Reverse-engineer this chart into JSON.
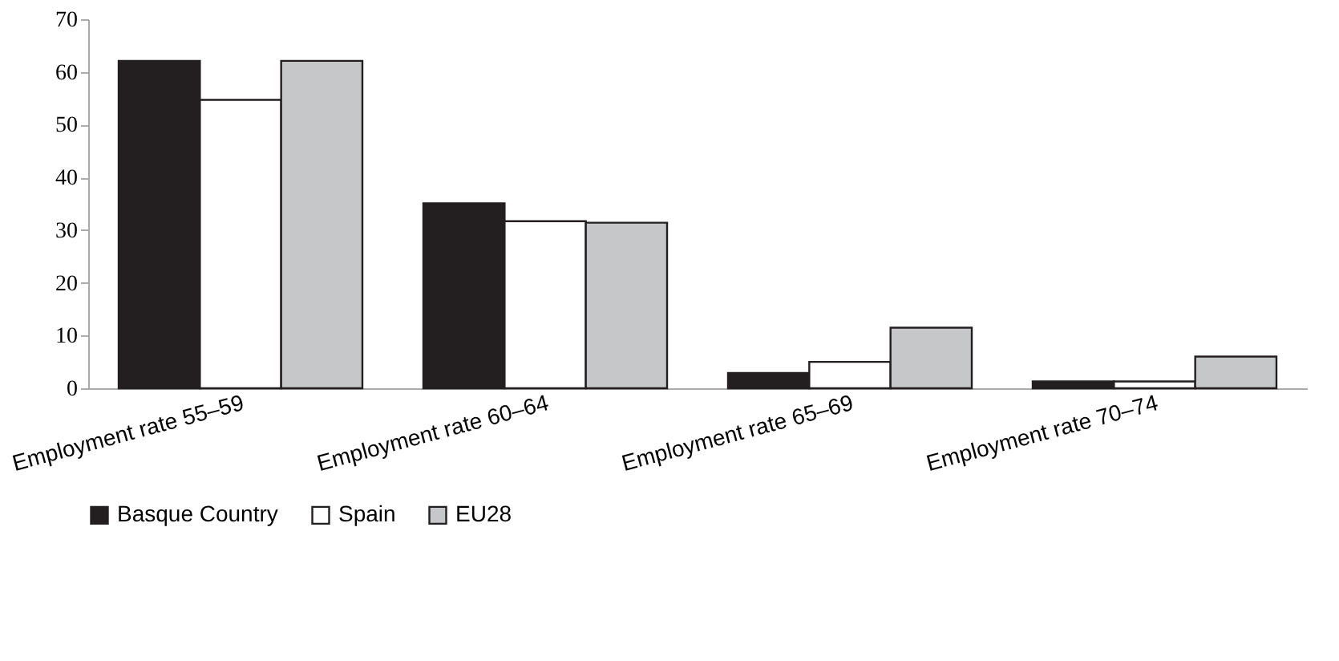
{
  "chart_data": {
    "type": "bar",
    "categories": [
      "Employment rate 55–59",
      "Employment rate 60–64",
      "Employment rate 65–69",
      "Employment rate 70–74"
    ],
    "series": [
      {
        "name": "Basque Country",
        "color": "#231f20",
        "values": [
          62.1,
          35.1,
          2.9,
          1.3
        ]
      },
      {
        "name": "Spain",
        "color": "#ffffff",
        "values": [
          54.7,
          31.7,
          5.0,
          1.3
        ]
      },
      {
        "name": "EU28",
        "color": "#c6c7c8",
        "values": [
          62.1,
          31.4,
          11.5,
          6.0
        ]
      }
    ],
    "ylim": [
      0,
      70
    ],
    "yticks": [
      0,
      10,
      20,
      30,
      40,
      50,
      60,
      70
    ],
    "grid": false,
    "legend": "bottom"
  }
}
